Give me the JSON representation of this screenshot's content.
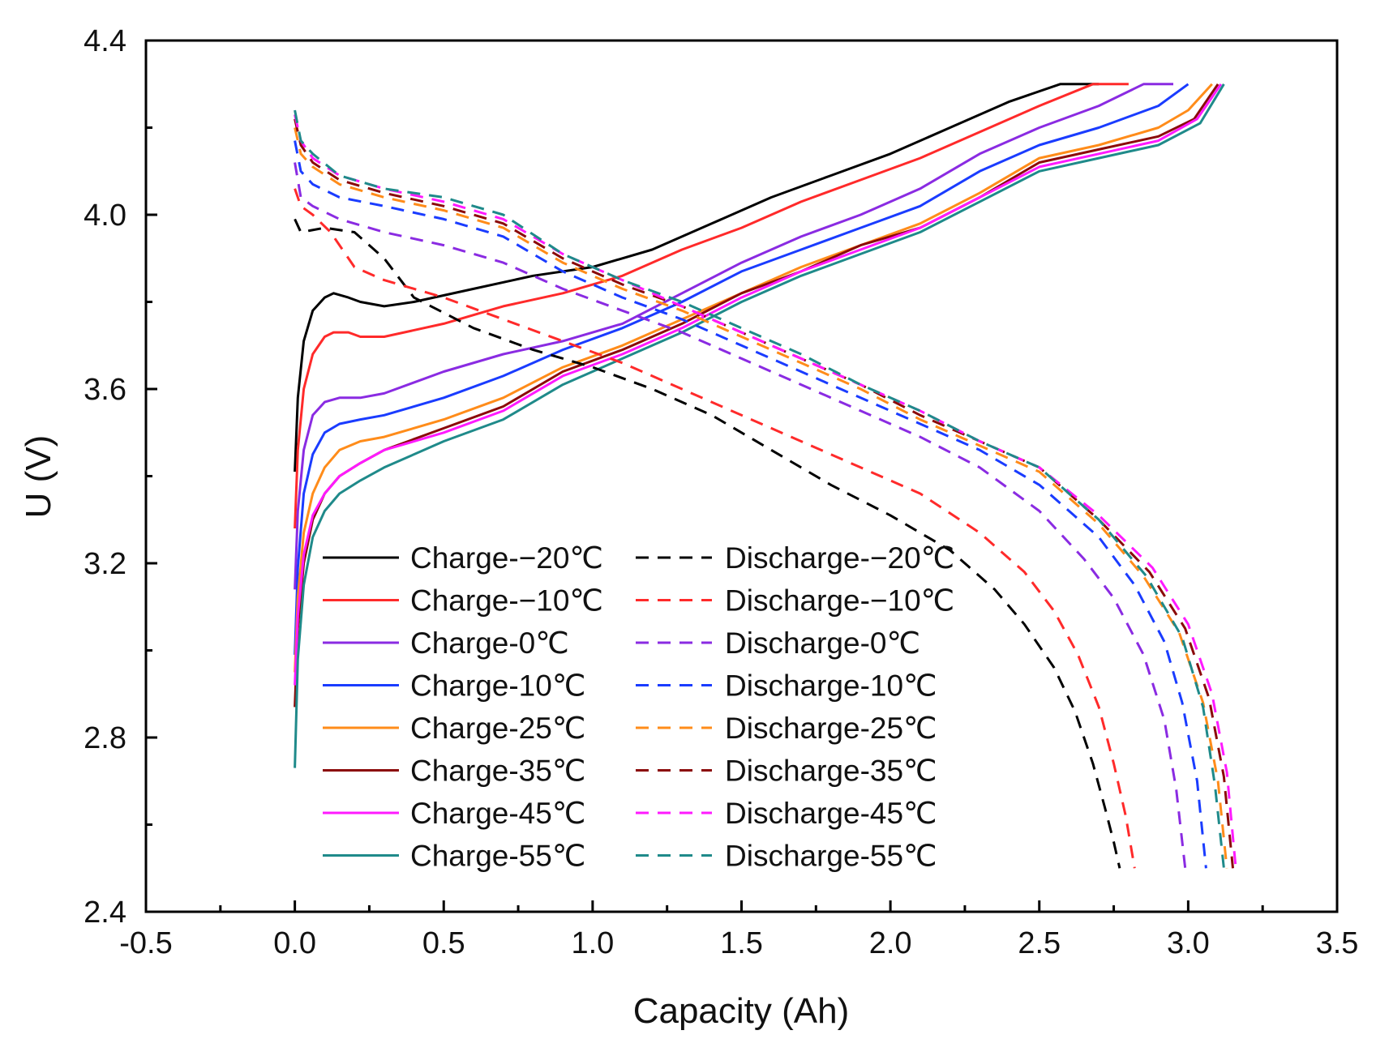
{
  "chart_data": {
    "type": "line",
    "xlabel": "Capacity (Ah)",
    "ylabel": "U (V)",
    "xlim": [
      -0.5,
      3.5
    ],
    "ylim": [
      2.4,
      4.4
    ],
    "xticks": [
      -0.5,
      0.0,
      0.5,
      1.0,
      1.5,
      2.0,
      2.5,
      3.0,
      3.5
    ],
    "xtick_labels": [
      "-0.5",
      "0.0",
      "0.5",
      "1.0",
      "1.5",
      "2.0",
      "2.5",
      "3.0",
      "3.5"
    ],
    "yticks": [
      2.4,
      2.8,
      3.2,
      3.6,
      4.0,
      4.4
    ],
    "ytick_labels": [
      "2.4",
      "2.8",
      "3.2",
      "3.6",
      "4.0",
      "4.4"
    ],
    "grid": false,
    "legend_position": "bottom-left",
    "series": [
      {
        "name": "Charge-−20℃",
        "color": "#000000",
        "dash": "solid",
        "x": [
          0.0,
          0.01,
          0.03,
          0.06,
          0.1,
          0.13,
          0.18,
          0.22,
          0.3,
          0.4,
          0.6,
          0.8,
          1.0,
          1.2,
          1.4,
          1.6,
          1.8,
          2.0,
          2.2,
          2.4,
          2.57,
          2.7
        ],
        "y": [
          3.41,
          3.58,
          3.71,
          3.78,
          3.81,
          3.82,
          3.81,
          3.8,
          3.79,
          3.8,
          3.83,
          3.86,
          3.88,
          3.92,
          3.98,
          4.04,
          4.09,
          4.14,
          4.2,
          4.26,
          4.3,
          4.3
        ]
      },
      {
        "name": "Charge-−10℃",
        "color": "#ff2a2a",
        "dash": "solid",
        "x": [
          0.0,
          0.01,
          0.03,
          0.06,
          0.1,
          0.13,
          0.18,
          0.22,
          0.3,
          0.5,
          0.7,
          0.9,
          1.1,
          1.3,
          1.5,
          1.7,
          1.9,
          2.1,
          2.3,
          2.5,
          2.68,
          2.8
        ],
        "y": [
          3.28,
          3.46,
          3.6,
          3.68,
          3.72,
          3.73,
          3.73,
          3.72,
          3.72,
          3.75,
          3.79,
          3.82,
          3.86,
          3.92,
          3.97,
          4.03,
          4.08,
          4.13,
          4.19,
          4.25,
          4.3,
          4.3
        ]
      },
      {
        "name": "Charge-0℃",
        "color": "#8a2be2",
        "dash": "solid",
        "x": [
          0.0,
          0.01,
          0.03,
          0.06,
          0.1,
          0.15,
          0.22,
          0.3,
          0.5,
          0.7,
          0.9,
          1.1,
          1.3,
          1.5,
          1.7,
          1.9,
          2.1,
          2.3,
          2.5,
          2.7,
          2.85,
          2.95
        ],
        "y": [
          3.14,
          3.32,
          3.46,
          3.54,
          3.57,
          3.58,
          3.58,
          3.59,
          3.64,
          3.68,
          3.71,
          3.75,
          3.82,
          3.89,
          3.95,
          4.0,
          4.06,
          4.14,
          4.2,
          4.25,
          4.3,
          4.3
        ]
      },
      {
        "name": "Charge-10℃",
        "color": "#1a3cff",
        "dash": "solid",
        "x": [
          0.0,
          0.01,
          0.03,
          0.06,
          0.1,
          0.15,
          0.22,
          0.3,
          0.5,
          0.7,
          0.9,
          1.1,
          1.3,
          1.5,
          1.7,
          1.9,
          2.1,
          2.3,
          2.5,
          2.7,
          2.9,
          3.0
        ],
        "y": [
          2.99,
          3.19,
          3.36,
          3.45,
          3.5,
          3.52,
          3.53,
          3.54,
          3.58,
          3.63,
          3.69,
          3.74,
          3.8,
          3.87,
          3.92,
          3.97,
          4.02,
          4.1,
          4.16,
          4.2,
          4.25,
          4.3
        ]
      },
      {
        "name": "Charge-25℃",
        "color": "#ff8c1a",
        "dash": "solid",
        "x": [
          0.0,
          0.01,
          0.03,
          0.06,
          0.1,
          0.15,
          0.22,
          0.3,
          0.5,
          0.7,
          0.9,
          1.1,
          1.3,
          1.5,
          1.7,
          1.9,
          2.1,
          2.3,
          2.5,
          2.7,
          2.9,
          3.0,
          3.08
        ],
        "y": [
          2.95,
          3.12,
          3.27,
          3.36,
          3.42,
          3.46,
          3.48,
          3.49,
          3.53,
          3.58,
          3.65,
          3.7,
          3.76,
          3.82,
          3.88,
          3.93,
          3.98,
          4.05,
          4.13,
          4.16,
          4.2,
          4.24,
          4.3
        ]
      },
      {
        "name": "Charge-35℃",
        "color": "#8b0a0a",
        "dash": "solid",
        "x": [
          0.0,
          0.01,
          0.03,
          0.06,
          0.1,
          0.15,
          0.22,
          0.3,
          0.5,
          0.7,
          0.9,
          1.1,
          1.3,
          1.5,
          1.7,
          1.9,
          2.1,
          2.3,
          2.5,
          2.7,
          2.9,
          3.02,
          3.1
        ],
        "y": [
          2.87,
          3.05,
          3.2,
          3.3,
          3.36,
          3.4,
          3.43,
          3.46,
          3.51,
          3.56,
          3.64,
          3.69,
          3.75,
          3.82,
          3.87,
          3.93,
          3.97,
          4.04,
          4.12,
          4.15,
          4.18,
          4.22,
          4.3
        ]
      },
      {
        "name": "Charge-45℃",
        "color": "#ff1aff",
        "dash": "solid",
        "x": [
          0.0,
          0.01,
          0.03,
          0.06,
          0.1,
          0.15,
          0.22,
          0.3,
          0.5,
          0.7,
          0.9,
          1.1,
          1.3,
          1.5,
          1.7,
          1.9,
          2.1,
          2.3,
          2.5,
          2.7,
          2.9,
          3.03,
          3.11
        ],
        "y": [
          2.92,
          3.08,
          3.22,
          3.31,
          3.36,
          3.4,
          3.43,
          3.46,
          3.5,
          3.55,
          3.63,
          3.68,
          3.74,
          3.81,
          3.87,
          3.92,
          3.97,
          4.04,
          4.11,
          4.14,
          4.17,
          4.22,
          4.3
        ]
      },
      {
        "name": "Charge-55℃",
        "color": "#1f8a8a",
        "dash": "solid",
        "x": [
          0.0,
          0.01,
          0.03,
          0.06,
          0.1,
          0.15,
          0.22,
          0.3,
          0.5,
          0.7,
          0.9,
          1.1,
          1.3,
          1.5,
          1.7,
          1.9,
          2.1,
          2.3,
          2.5,
          2.7,
          2.9,
          3.04,
          3.12
        ],
        "y": [
          2.73,
          2.98,
          3.15,
          3.26,
          3.32,
          3.36,
          3.39,
          3.42,
          3.48,
          3.53,
          3.61,
          3.67,
          3.73,
          3.8,
          3.86,
          3.91,
          3.96,
          4.03,
          4.1,
          4.13,
          4.16,
          4.21,
          4.3
        ]
      },
      {
        "name": "Discharge-−20℃",
        "color": "#000000",
        "dash": "dashed",
        "x": [
          0.0,
          0.02,
          0.1,
          0.2,
          0.3,
          0.4,
          0.6,
          0.8,
          1.0,
          1.2,
          1.4,
          1.6,
          1.8,
          2.0,
          2.2,
          2.35,
          2.45,
          2.55,
          2.62,
          2.68,
          2.72,
          2.75,
          2.77
        ],
        "y": [
          3.99,
          3.96,
          3.97,
          3.96,
          3.9,
          3.81,
          3.74,
          3.69,
          3.65,
          3.6,
          3.54,
          3.46,
          3.38,
          3.31,
          3.23,
          3.14,
          3.06,
          2.96,
          2.86,
          2.74,
          2.64,
          2.56,
          2.5
        ]
      },
      {
        "name": "Discharge-−10℃",
        "color": "#ff2a2a",
        "dash": "dashed",
        "x": [
          0.0,
          0.02,
          0.06,
          0.12,
          0.2,
          0.3,
          0.5,
          0.7,
          0.9,
          1.1,
          1.3,
          1.5,
          1.7,
          1.9,
          2.1,
          2.3,
          2.45,
          2.55,
          2.63,
          2.7,
          2.75,
          2.79,
          2.82
        ],
        "y": [
          4.06,
          4.02,
          4.0,
          3.96,
          3.88,
          3.85,
          3.81,
          3.76,
          3.71,
          3.66,
          3.6,
          3.54,
          3.48,
          3.42,
          3.36,
          3.27,
          3.18,
          3.09,
          2.99,
          2.87,
          2.74,
          2.62,
          2.5
        ]
      },
      {
        "name": "Discharge-0℃",
        "color": "#8a2be2",
        "dash": "dashed",
        "x": [
          0.0,
          0.02,
          0.06,
          0.15,
          0.3,
          0.5,
          0.7,
          0.9,
          1.1,
          1.3,
          1.5,
          1.7,
          1.9,
          2.1,
          2.3,
          2.5,
          2.65,
          2.75,
          2.85,
          2.92,
          2.96,
          2.99
        ],
        "y": [
          4.12,
          4.04,
          4.02,
          3.99,
          3.96,
          3.93,
          3.89,
          3.83,
          3.78,
          3.73,
          3.67,
          3.61,
          3.55,
          3.49,
          3.42,
          3.32,
          3.21,
          3.12,
          2.99,
          2.84,
          2.68,
          2.5
        ]
      },
      {
        "name": "Discharge-10℃",
        "color": "#1a3cff",
        "dash": "dashed",
        "x": [
          0.0,
          0.02,
          0.06,
          0.15,
          0.3,
          0.5,
          0.7,
          0.9,
          1.1,
          1.3,
          1.5,
          1.7,
          1.9,
          2.1,
          2.3,
          2.5,
          2.7,
          2.82,
          2.92,
          2.98,
          3.03,
          3.06
        ],
        "y": [
          4.17,
          4.1,
          4.07,
          4.04,
          4.02,
          3.99,
          3.95,
          3.87,
          3.81,
          3.76,
          3.7,
          3.64,
          3.58,
          3.52,
          3.46,
          3.38,
          3.26,
          3.15,
          3.02,
          2.88,
          2.7,
          2.5
        ]
      },
      {
        "name": "Discharge-25℃",
        "color": "#ff8c1a",
        "dash": "dashed",
        "x": [
          0.0,
          0.02,
          0.06,
          0.15,
          0.3,
          0.5,
          0.7,
          0.9,
          1.1,
          1.3,
          1.5,
          1.7,
          1.9,
          2.1,
          2.3,
          2.5,
          2.7,
          2.85,
          2.97,
          3.05,
          3.1,
          3.13
        ],
        "y": [
          4.2,
          4.14,
          4.11,
          4.07,
          4.04,
          4.01,
          3.97,
          3.89,
          3.83,
          3.78,
          3.72,
          3.66,
          3.6,
          3.53,
          3.47,
          3.41,
          3.29,
          3.17,
          3.04,
          2.88,
          2.7,
          2.5
        ]
      },
      {
        "name": "Discharge-35℃",
        "color": "#8b0a0a",
        "dash": "dashed",
        "x": [
          0.0,
          0.02,
          0.06,
          0.15,
          0.3,
          0.5,
          0.7,
          0.9,
          1.1,
          1.3,
          1.5,
          1.7,
          1.9,
          2.1,
          2.3,
          2.5,
          2.7,
          2.87,
          2.99,
          3.07,
          3.12,
          3.15
        ],
        "y": [
          4.22,
          4.16,
          4.12,
          4.08,
          4.05,
          4.02,
          3.98,
          3.9,
          3.84,
          3.79,
          3.73,
          3.67,
          3.61,
          3.54,
          3.48,
          3.42,
          3.3,
          3.18,
          3.05,
          2.89,
          2.71,
          2.5
        ]
      },
      {
        "name": "Discharge-45℃",
        "color": "#ff1aff",
        "dash": "dashed",
        "x": [
          0.0,
          0.02,
          0.06,
          0.15,
          0.3,
          0.5,
          0.7,
          0.9,
          1.1,
          1.3,
          1.5,
          1.7,
          1.9,
          2.1,
          2.3,
          2.5,
          2.7,
          2.88,
          3.0,
          3.08,
          3.13,
          3.16
        ],
        "y": [
          4.23,
          4.17,
          4.13,
          4.09,
          4.06,
          4.03,
          3.99,
          3.91,
          3.85,
          3.79,
          3.73,
          3.67,
          3.61,
          3.55,
          3.48,
          3.42,
          3.31,
          3.19,
          3.06,
          2.9,
          2.72,
          2.5
        ]
      },
      {
        "name": "Discharge-55℃",
        "color": "#1f8a8a",
        "dash": "dashed",
        "x": [
          0.0,
          0.02,
          0.06,
          0.15,
          0.3,
          0.5,
          0.7,
          0.9,
          1.1,
          1.3,
          1.5,
          1.7,
          1.9,
          2.1,
          2.3,
          2.5,
          2.7,
          2.86,
          2.98,
          3.05,
          3.09,
          3.12
        ],
        "y": [
          4.24,
          4.17,
          4.14,
          4.09,
          4.06,
          4.04,
          4.0,
          3.91,
          3.85,
          3.8,
          3.74,
          3.68,
          3.61,
          3.55,
          3.48,
          3.42,
          3.3,
          3.17,
          3.03,
          2.87,
          2.69,
          2.5
        ]
      }
    ]
  }
}
